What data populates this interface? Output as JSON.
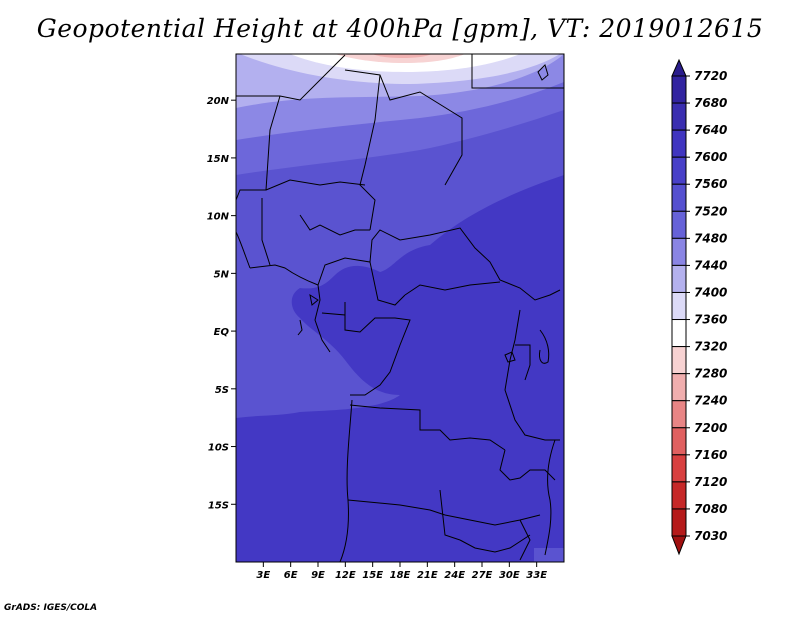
{
  "title": "Geopotential Height at 400hPa [gpm], VT: 2019012615",
  "credit": "GrADS: IGES/COLA",
  "map": {
    "lon_range": [
      0,
      36
    ],
    "lat_range": [
      -20,
      24
    ],
    "lon_ticks": [
      "3E",
      "6E",
      "9E",
      "12E",
      "15E",
      "18E",
      "21E",
      "24E",
      "27E",
      "30E",
      "33E"
    ],
    "lon_tick_values": [
      3,
      6,
      9,
      12,
      15,
      18,
      21,
      24,
      27,
      30,
      33
    ],
    "lat_ticks": [
      "20N",
      "15N",
      "10N",
      "5N",
      "EQ",
      "5S",
      "10S",
      "15S"
    ],
    "lat_tick_values": [
      20,
      15,
      10,
      5,
      0,
      -5,
      -10,
      -15
    ]
  },
  "colorbar": {
    "labels": [
      "7720",
      "7680",
      "7640",
      "7600",
      "7560",
      "7520",
      "7480",
      "7440",
      "7400",
      "7360",
      "7320",
      "7280",
      "7240",
      "7200",
      "7160",
      "7120",
      "7080",
      "7030"
    ],
    "colors": [
      "#2a1d8c",
      "#3224a0",
      "#3a2eb0",
      "#4035c0",
      "#4840c8",
      "#5550d0",
      "#6662d8",
      "#8a85e4",
      "#b4b1ee",
      "#dcdaf7",
      "#ffffff",
      "#f7d2d2",
      "#f0aeae",
      "#e88585",
      "#e06060",
      "#d84040",
      "#c62828",
      "#b51a1a",
      "#a01010"
    ]
  }
}
